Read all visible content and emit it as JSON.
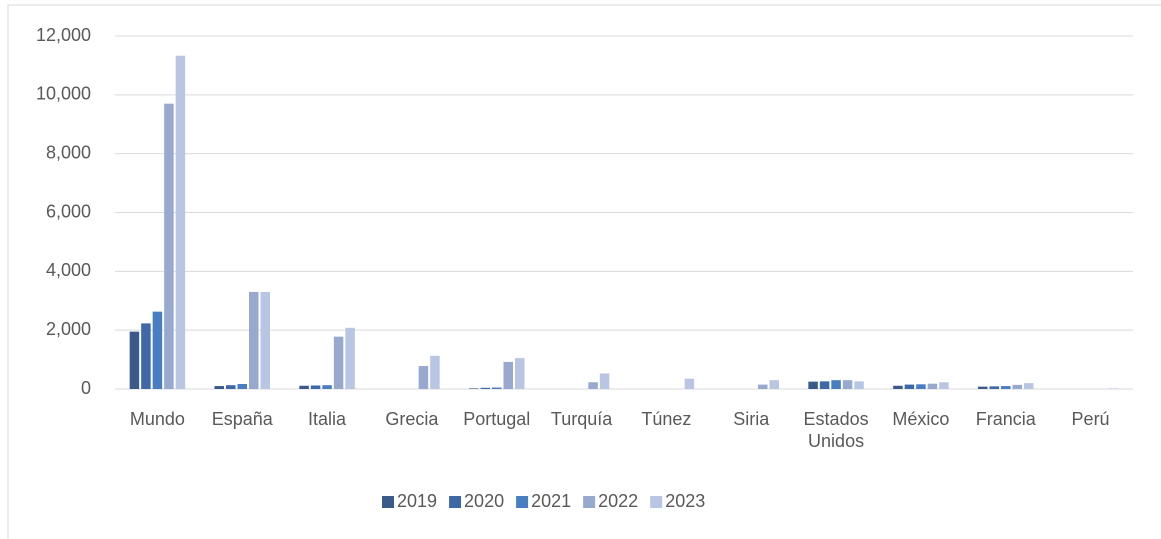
{
  "chart_data": {
    "type": "bar",
    "categories": [
      "Mundo",
      "España",
      "Italia",
      "Grecia",
      "Portugal",
      "Turquía",
      "Túnez",
      "Siria",
      "Estados Unidos",
      "México",
      "Francia",
      "Perú"
    ],
    "series": [
      {
        "name": "2019",
        "color": "#3b5a8c",
        "values": [
          1950,
          100,
          110,
          0,
          20,
          0,
          0,
          0,
          250,
          110,
          80,
          0
        ]
      },
      {
        "name": "2020",
        "color": "#3f68a8",
        "values": [
          2230,
          130,
          120,
          0,
          40,
          0,
          0,
          0,
          260,
          150,
          90,
          0
        ]
      },
      {
        "name": "2021",
        "color": "#4a7ec3",
        "values": [
          2630,
          170,
          130,
          0,
          50,
          0,
          0,
          0,
          300,
          160,
          100,
          0
        ]
      },
      {
        "name": "2022",
        "color": "#97a9cf",
        "values": [
          9700,
          3300,
          1780,
          780,
          920,
          230,
          0,
          150,
          300,
          180,
          140,
          0
        ]
      },
      {
        "name": "2023",
        "color": "#b9c6e3",
        "values": [
          11330,
          3300,
          2080,
          1130,
          1050,
          530,
          350,
          300,
          260,
          230,
          200,
          20
        ]
      }
    ],
    "ylim": [
      0,
      12000
    ],
    "yticks": [
      0,
      {
        "value": 2000,
        "label": "2,000"
      },
      {
        "value": 4000,
        "label": "4,000"
      },
      {
        "value": 6000,
        "label": "6,000"
      },
      {
        "value": 8000,
        "label": "8,000"
      },
      {
        "value": 10000,
        "label": "10,000"
      },
      {
        "value": 12000,
        "label": "12,000"
      }
    ],
    "grid": true,
    "legend": "bottom"
  }
}
